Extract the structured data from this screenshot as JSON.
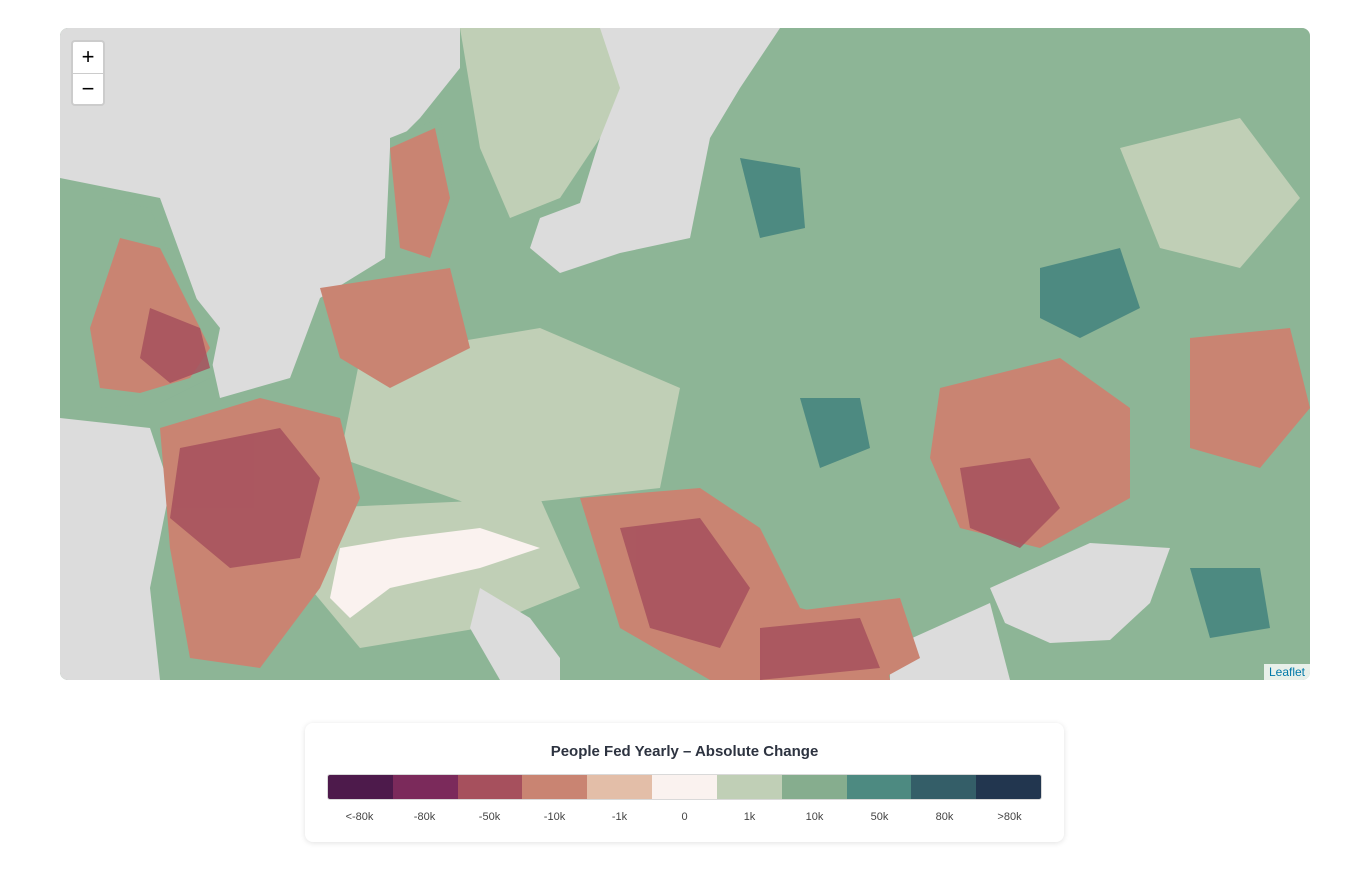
{
  "map": {
    "zoom_in": "+",
    "zoom_out": "−",
    "attribution": "Leaflet"
  },
  "legend": {
    "title": "People Fed Yearly – Absolute Change",
    "items": [
      {
        "label": "<-80k",
        "color": "#4d1a4b"
      },
      {
        "label": "-80k",
        "color": "#7b2a5b"
      },
      {
        "label": "-50k",
        "color": "#a6505d"
      },
      {
        "label": "-10k",
        "color": "#c98472"
      },
      {
        "label": "-1k",
        "color": "#e3bea8"
      },
      {
        "label": "0",
        "color": "#faf2ef"
      },
      {
        "label": "1k",
        "color": "#c0cfb6"
      },
      {
        "label": "10k",
        "color": "#86ad8e"
      },
      {
        "label": "50k",
        "color": "#4d8a81"
      },
      {
        "label": "80k",
        "color": "#345e68"
      },
      {
        "label": ">80k",
        "color": "#22364f"
      }
    ]
  }
}
